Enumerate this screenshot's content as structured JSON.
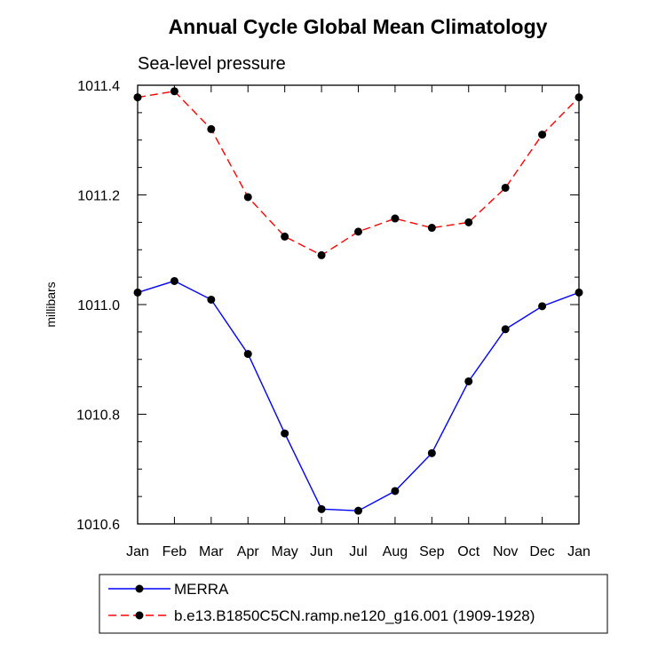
{
  "chart_data": {
    "type": "line",
    "title": "Annual Cycle Global Mean Climatology",
    "subtitle": "Sea-level pressure",
    "xlabel": "",
    "ylabel": "millibars",
    "categories": [
      "Jan",
      "Feb",
      "Mar",
      "Apr",
      "May",
      "Jun",
      "Jul",
      "Aug",
      "Sep",
      "Oct",
      "Nov",
      "Dec",
      "Jan"
    ],
    "ylim": [
      1010.6,
      1011.4
    ],
    "yticks": [
      "1010.6",
      "1010.8",
      "1011.0",
      "1011.2",
      "1011.4"
    ],
    "ytick_values": [
      1010.6,
      1010.8,
      1011.0,
      1011.2,
      1011.4
    ],
    "grid": false,
    "legend_position": "bottom",
    "series": [
      {
        "name": "MERRA",
        "color": "#0000ff",
        "dash": "solid",
        "marker": "circle",
        "values": [
          1011.022,
          1011.043,
          1011.009,
          1010.91,
          1010.765,
          1010.627,
          1010.624,
          1010.66,
          1010.729,
          1010.86,
          1010.955,
          1010.997,
          1011.022
        ]
      },
      {
        "name": "b.e13.B1850C5CN.ramp.ne120_g16.001 (1909-1928)",
        "color": "#ff0000",
        "dash": "dashed",
        "marker": "circle",
        "values": [
          1011.378,
          1011.389,
          1011.32,
          1011.196,
          1011.124,
          1011.09,
          1011.133,
          1011.157,
          1011.14,
          1011.15,
          1011.213,
          1011.31,
          1011.378
        ]
      }
    ]
  }
}
